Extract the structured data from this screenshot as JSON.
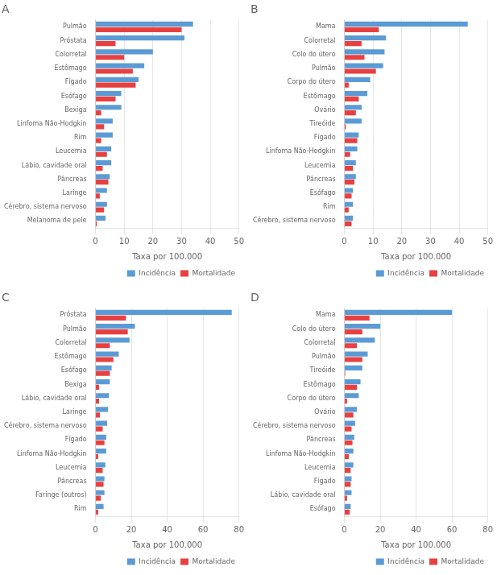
{
  "chart_data": [
    {
      "type": "bar",
      "orientation": "horizontal",
      "title": "A",
      "categories": [
        "Pulmão",
        "Próstata",
        "Colorretal",
        "Estômago",
        "Fígado",
        "Esófago",
        "Bexiga",
        "Linfoma Não-Hodgkin",
        "Rim",
        "Leucemia",
        "Lábio, cavidade oral",
        "Pâncreas",
        "Laringe",
        "Cérebro, sistema nervoso",
        "Melanoma de pele"
      ],
      "series": [
        {
          "name": "Incidência",
          "color": "#5b9bd5",
          "values": [
            34,
            31,
            20,
            17,
            15,
            9,
            9,
            6,
            6,
            5.5,
            5.5,
            5,
            4,
            4,
            3.5
          ]
        },
        {
          "name": "Mortalidade",
          "color": "#e84040",
          "values": [
            30,
            7,
            10,
            13,
            14,
            7,
            2,
            3,
            2,
            4,
            2.5,
            4.5,
            1.5,
            3,
            0.5
          ]
        }
      ],
      "xlabel": "Taxa por 100.000",
      "xlim": [
        0,
        50
      ],
      "xticks": [
        0,
        10,
        20,
        30,
        40,
        50
      ],
      "grid": true,
      "legend": "lower right"
    },
    {
      "type": "bar",
      "orientation": "horizontal",
      "title": "B",
      "categories": [
        "Mama",
        "Colorretal",
        "Colo do útero",
        "Pulmão",
        "Corpo do útero",
        "Estômago",
        "Ovário",
        "Tireóide",
        "Fígado",
        "Linfoma Não-Hodgkin",
        "Leucemia",
        "Pâncreas",
        "Esófago",
        "Rim",
        "Cérebro, sistema nervoso"
      ],
      "series": [
        {
          "name": "Incidência",
          "color": "#5b9bd5",
          "values": [
            43,
            14.5,
            14,
            13.5,
            9,
            8,
            6,
            6,
            5,
            4.5,
            4,
            4,
            3,
            3,
            3
          ]
        },
        {
          "name": "Mortalidade",
          "color": "#e84040",
          "values": [
            12,
            6,
            7,
            11,
            1.5,
            5,
            4,
            0.5,
            4.5,
            2,
            3,
            3.5,
            2.5,
            1.5,
            2.5
          ]
        }
      ],
      "xlabel": "Taxa por 100.000",
      "xlim": [
        0,
        50
      ],
      "xticks": [
        0,
        10,
        20,
        30,
        40,
        50
      ],
      "grid": true,
      "legend": "lower right"
    },
    {
      "type": "bar",
      "orientation": "horizontal",
      "title": "C",
      "categories": [
        "Próstata",
        "Pulmão",
        "Colorretal",
        "Estômago",
        "Esófago",
        "Bexiga",
        "Lábio, cavidade oral",
        "Laringe",
        "Cérebro, sistema nervoso",
        "Fígado",
        "Linfoma Não-Hodgkin",
        "Leucemia",
        "Pâncreas",
        "Faringe (outros)",
        "Rim"
      ],
      "series": [
        {
          "name": "Incidência",
          "color": "#5b9bd5",
          "values": [
            76,
            22,
            19,
            13,
            9,
            8,
            7.5,
            7,
            6.5,
            6,
            6,
            5.5,
            5,
            5,
            4.5
          ]
        },
        {
          "name": "Mortalidade",
          "color": "#e84040",
          "values": [
            17,
            18,
            8,
            10,
            8,
            2,
            2,
            2.5,
            4,
            5,
            1.5,
            4,
            4.5,
            3,
            1.5
          ]
        }
      ],
      "xlabel": "Taxa por 100.000",
      "xlim": [
        0,
        80
      ],
      "xticks": [
        0,
        20,
        40,
        60,
        80
      ],
      "grid": true,
      "legend": "lower right"
    },
    {
      "type": "bar",
      "orientation": "horizontal",
      "title": "D",
      "categories": [
        "Mama",
        "Colo do útero",
        "Colorretal",
        "Pulmão",
        "Tireóide",
        "Estômago",
        "Corpo do útero",
        "Ovário",
        "Cérebro, sistema nervoso",
        "Pâncreas",
        "Linfoma Não-Hodgkin",
        "Leucemia",
        "Fígado",
        "Lábio, cavidade oral",
        "Esófago"
      ],
      "series": [
        {
          "name": "Incidência",
          "color": "#5b9bd5",
          "values": [
            60,
            20,
            17,
            13,
            10,
            9,
            8,
            7,
            6,
            5.5,
            5,
            5,
            4,
            4,
            3.5
          ]
        },
        {
          "name": "Mortalidade",
          "color": "#e84040",
          "values": [
            14,
            10,
            7,
            10,
            0.5,
            7,
            1.5,
            5,
            4,
            4.5,
            2.5,
            3.5,
            3.5,
            1.5,
            3
          ]
        }
      ],
      "xlabel": "Taxa por 100.000",
      "xlim": [
        0,
        80
      ],
      "xticks": [
        0,
        20,
        40,
        60,
        80
      ],
      "grid": true,
      "legend": "lower right"
    }
  ]
}
